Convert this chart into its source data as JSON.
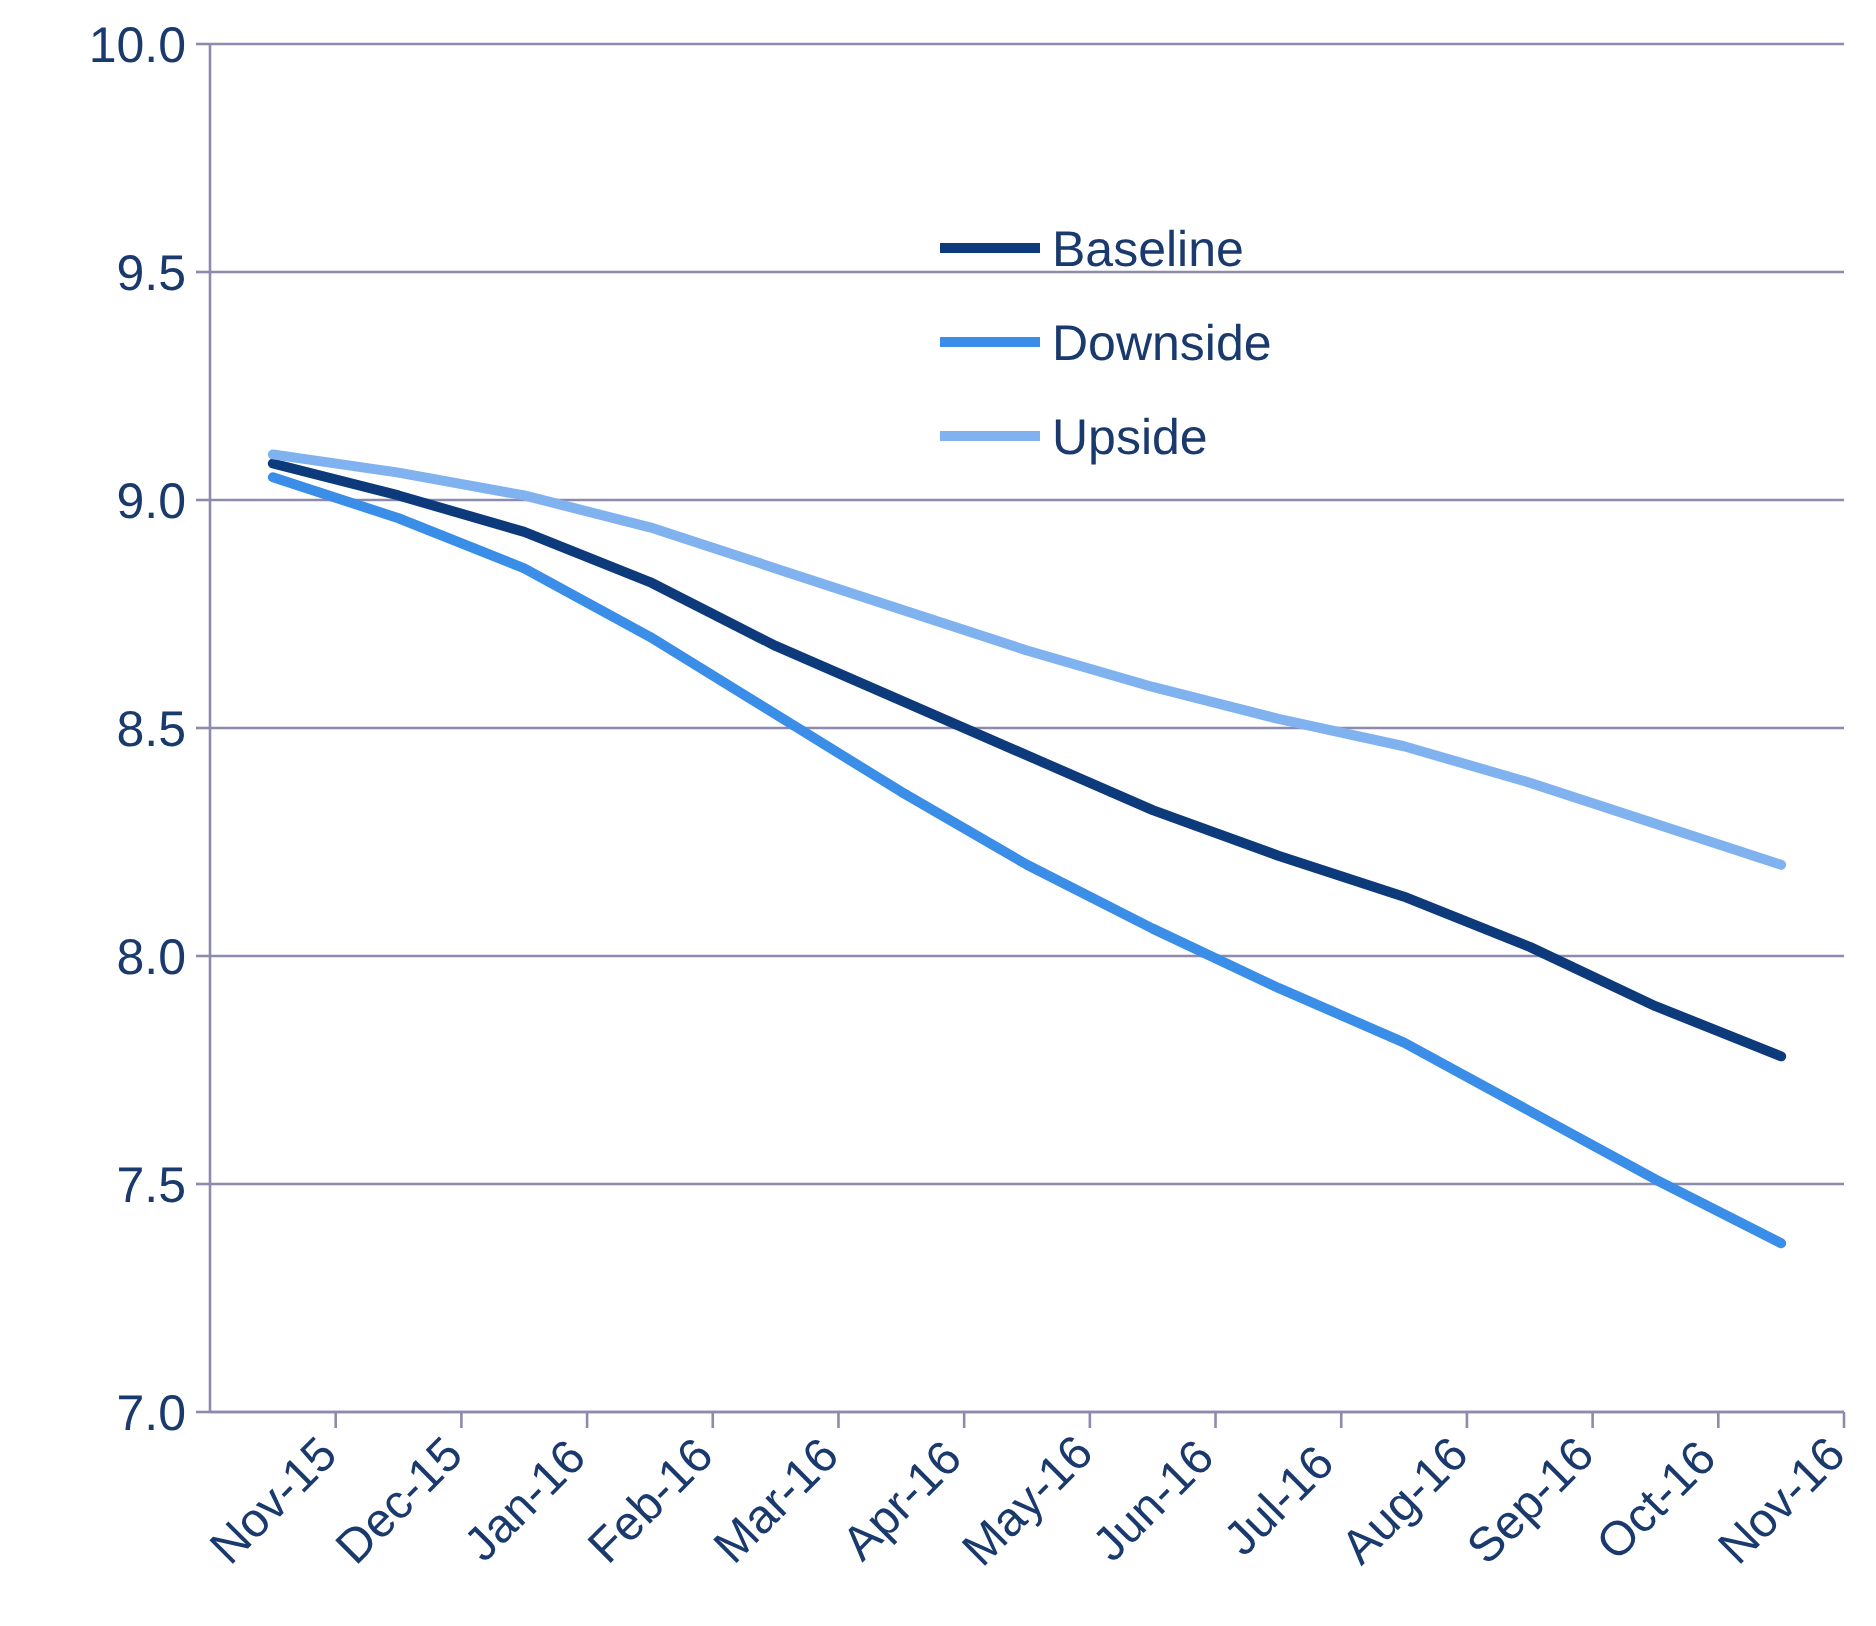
{
  "chart_data": {
    "type": "line",
    "categories": [
      "Nov-15",
      "Dec-15",
      "Jan-16",
      "Feb-16",
      "Mar-16",
      "Apr-16",
      "May-16",
      "Jun-16",
      "Jul-16",
      "Aug-16",
      "Sep-16",
      "Oct-16",
      "Nov-16"
    ],
    "series": [
      {
        "name": "Baseline",
        "color": "#0d3a7a",
        "values": [
          9.08,
          9.01,
          8.93,
          8.82,
          8.68,
          8.56,
          8.44,
          8.32,
          8.22,
          8.13,
          8.02,
          7.89,
          7.78
        ]
      },
      {
        "name": "Downside",
        "color": "#3b8ee8",
        "values": [
          9.05,
          8.96,
          8.85,
          8.7,
          8.53,
          8.36,
          8.2,
          8.06,
          7.93,
          7.81,
          7.66,
          7.51,
          7.37
        ]
      },
      {
        "name": "Upside",
        "color": "#7fb2ee",
        "values": [
          9.1,
          9.06,
          9.01,
          8.94,
          8.85,
          8.76,
          8.67,
          8.59,
          8.52,
          8.46,
          8.38,
          8.29,
          8.2
        ]
      }
    ],
    "ylim": [
      7,
      10
    ],
    "yticks": [
      {
        "value": 7,
        "label": "7.0"
      },
      {
        "value": 7.5,
        "label": "7.5"
      },
      {
        "value": 8,
        "label": "8.0"
      },
      {
        "value": 8.5,
        "label": "8.5"
      },
      {
        "value": 9,
        "label": "9.0"
      },
      {
        "value": 9.5,
        "label": "9.5"
      },
      {
        "value": 10,
        "label": "10.0"
      }
    ],
    "grid": "y",
    "legend": "top",
    "marker": "none",
    "line_style": "solid"
  }
}
